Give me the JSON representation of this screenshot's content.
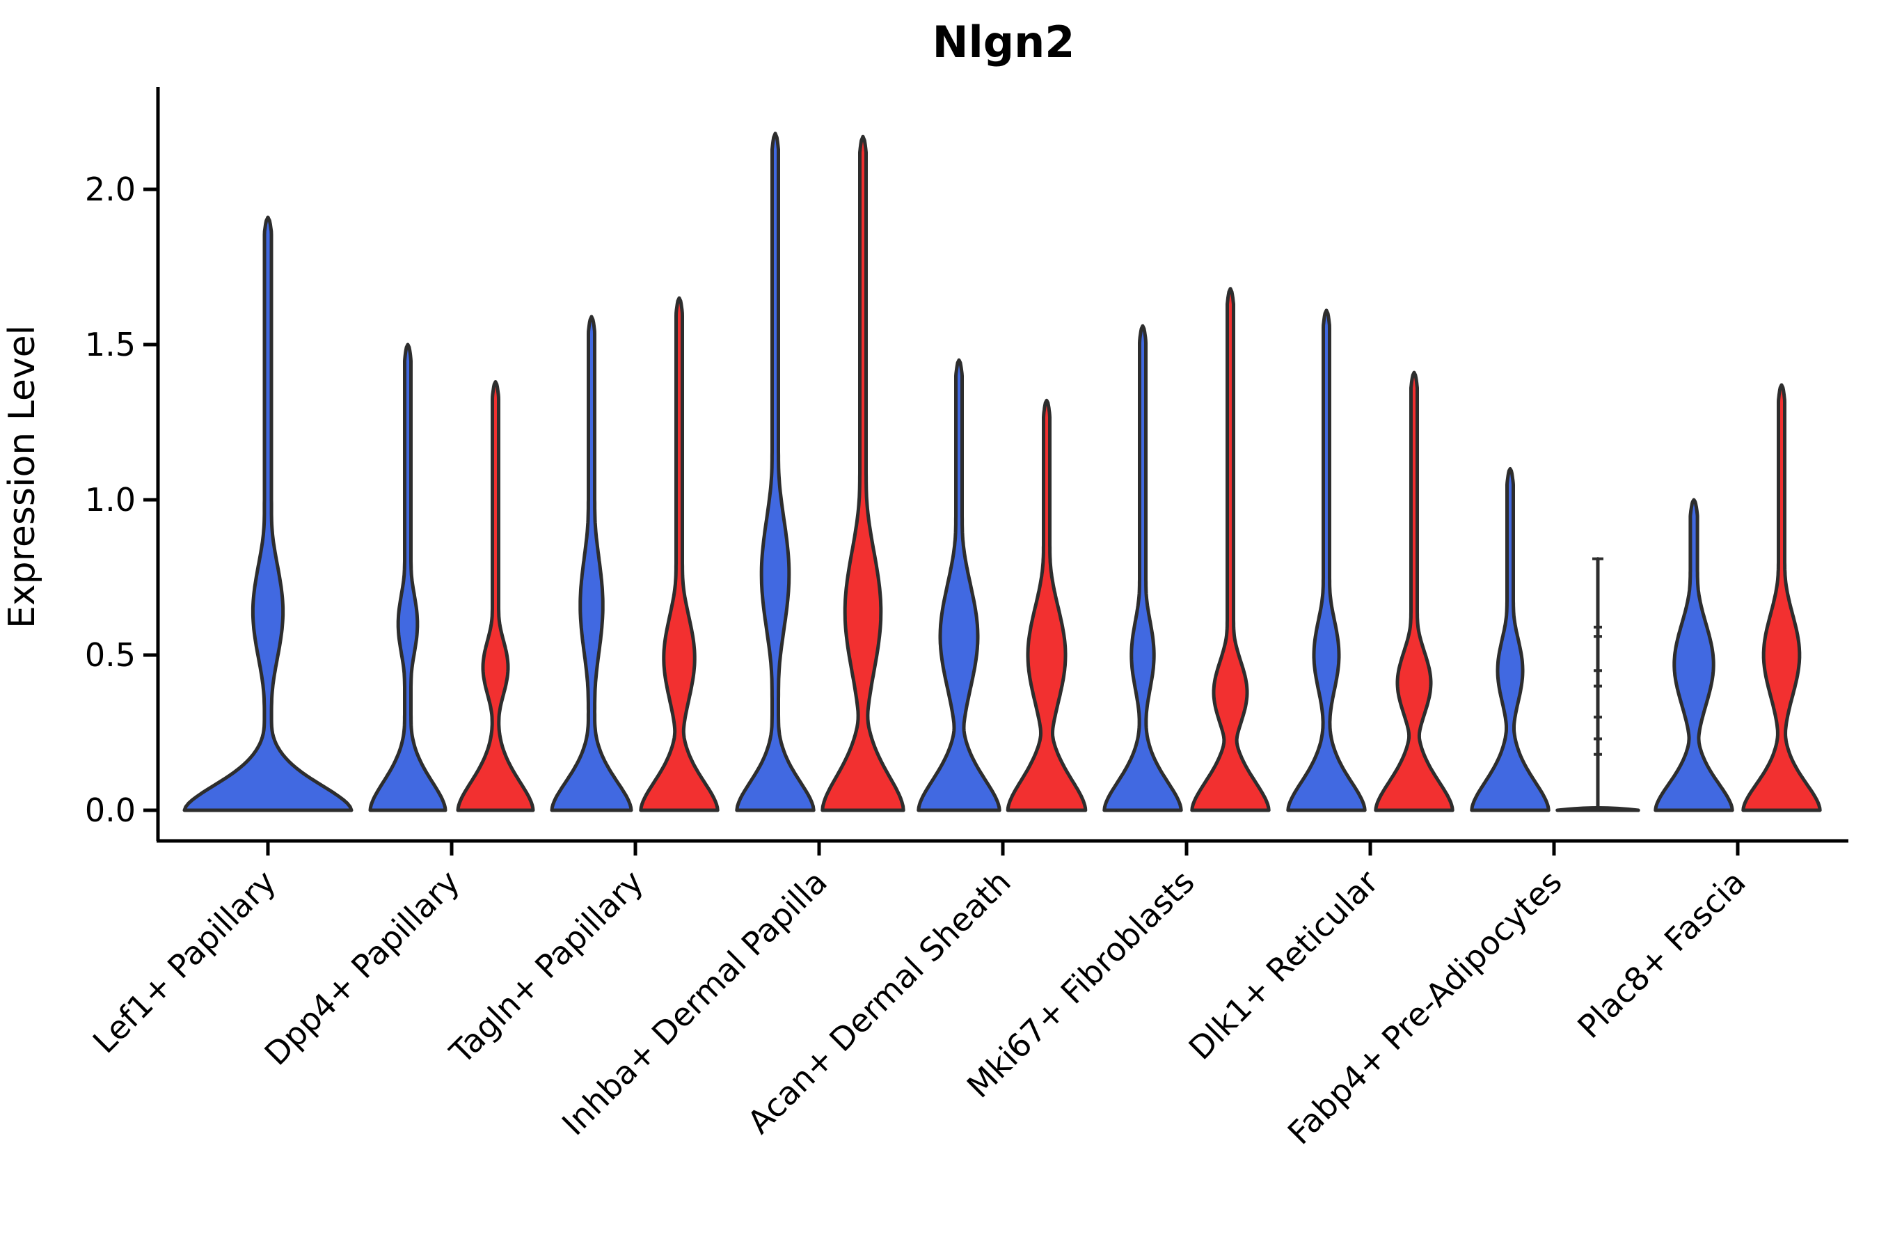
{
  "chart_data": {
    "type": "violin",
    "title": "Nlgn2",
    "ylabel": "Expression Level",
    "xlabel": "",
    "legend": "none",
    "grid": false,
    "y_tick_labels": [
      "0.0",
      "0.5",
      "1.0",
      "1.5",
      "2.0"
    ],
    "y_tick_values": [
      0.0,
      0.5,
      1.0,
      1.5,
      2.0
    ],
    "ylim": [
      -0.1,
      2.33
    ],
    "categories": [
      "Lef1+ Papillary",
      "Dpp4+ Papillary",
      "Tagln+ Papillary",
      "Inhba+ Dermal Papilla",
      "Acan+ Dermal Sheath",
      "Mki67+ Fibroblasts",
      "Dlk1+ Reticular",
      "Fabp4+ Pre-Adipocytes",
      "Plac8+ Fascia"
    ],
    "palette": {
      "blue": "#4169E1",
      "red": "#F23030",
      "outline": "#2D2D2D",
      "axis": "#000000",
      "background": "#FFFFFF"
    },
    "violins": [
      {
        "category_index": 0,
        "group": "blue",
        "side": 0,
        "max": 1.91,
        "bulge": {
          "center": 0.64,
          "lo": 0.35,
          "hi": 1.05,
          "w": 0.18
        },
        "base_w": 1.0,
        "base_falloff": 0.13,
        "spike_w": 0.042,
        "collapsed": false
      },
      {
        "category_index": 1,
        "group": "blue",
        "side": -1,
        "max": 1.5,
        "bulge": {
          "center": 0.6,
          "lo": 0.35,
          "hi": 0.82,
          "w": 0.23
        },
        "base_w": 0.9,
        "base_falloff": 0.15,
        "spike_w": 0.075,
        "collapsed": false
      },
      {
        "category_index": 1,
        "group": "red",
        "side": 1,
        "max": 1.38,
        "bulge": {
          "center": 0.46,
          "lo": 0.25,
          "hi": 0.66,
          "w": 0.3
        },
        "base_w": 0.9,
        "base_falloff": 0.15,
        "spike_w": 0.075,
        "collapsed": false
      },
      {
        "category_index": 2,
        "group": "blue",
        "side": -1,
        "max": 1.59,
        "bulge": {
          "center": 0.66,
          "lo": 0.34,
          "hi": 1.08,
          "w": 0.27
        },
        "base_w": 0.95,
        "base_falloff": 0.15,
        "spike_w": 0.075,
        "collapsed": false
      },
      {
        "category_index": 2,
        "group": "red",
        "side": 1,
        "max": 1.65,
        "bulge": {
          "center": 0.49,
          "lo": 0.23,
          "hi": 0.85,
          "w": 0.37
        },
        "base_w": 0.92,
        "base_falloff": 0.15,
        "spike_w": 0.075,
        "collapsed": false
      },
      {
        "category_index": 3,
        "group": "blue",
        "side": -1,
        "max": 2.18,
        "bulge": {
          "center": 0.76,
          "lo": 0.34,
          "hi": 1.17,
          "w": 0.33
        },
        "base_w": 0.92,
        "base_falloff": 0.15,
        "spike_w": 0.075,
        "collapsed": false
      },
      {
        "category_index": 3,
        "group": "red",
        "side": 1,
        "max": 2.17,
        "bulge": {
          "center": 0.64,
          "lo": 0.22,
          "hi": 1.1,
          "w": 0.43
        },
        "base_w": 0.97,
        "base_falloff": 0.18,
        "spike_w": 0.075,
        "collapsed": false
      },
      {
        "category_index": 4,
        "group": "blue",
        "side": -1,
        "max": 1.45,
        "bulge": {
          "center": 0.56,
          "lo": 0.21,
          "hi": 0.97,
          "w": 0.45
        },
        "base_w": 0.97,
        "base_falloff": 0.16,
        "spike_w": 0.075,
        "collapsed": false
      },
      {
        "category_index": 4,
        "group": "red",
        "side": 1,
        "max": 1.32,
        "bulge": {
          "center": 0.5,
          "lo": 0.2,
          "hi": 0.9,
          "w": 0.45
        },
        "base_w": 0.93,
        "base_falloff": 0.16,
        "spike_w": 0.075,
        "collapsed": false
      },
      {
        "category_index": 5,
        "group": "blue",
        "side": -1,
        "max": 1.56,
        "bulge": {
          "center": 0.5,
          "lo": 0.27,
          "hi": 0.8,
          "w": 0.27
        },
        "base_w": 0.92,
        "base_falloff": 0.15,
        "spike_w": 0.075,
        "collapsed": false
      },
      {
        "category_index": 5,
        "group": "red",
        "side": 1,
        "max": 1.68,
        "bulge": {
          "center": 0.38,
          "lo": 0.2,
          "hi": 0.66,
          "w": 0.4
        },
        "base_w": 0.92,
        "base_falloff": 0.15,
        "spike_w": 0.075,
        "collapsed": false
      },
      {
        "category_index": 6,
        "group": "blue",
        "side": -1,
        "max": 1.61,
        "bulge": {
          "center": 0.5,
          "lo": 0.27,
          "hi": 0.8,
          "w": 0.3
        },
        "base_w": 0.92,
        "base_falloff": 0.15,
        "spike_w": 0.075,
        "collapsed": false
      },
      {
        "category_index": 6,
        "group": "red",
        "side": 1,
        "max": 1.41,
        "bulge": {
          "center": 0.41,
          "lo": 0.2,
          "hi": 0.66,
          "w": 0.4
        },
        "base_w": 0.92,
        "base_falloff": 0.15,
        "spike_w": 0.075,
        "collapsed": false
      },
      {
        "category_index": 7,
        "group": "blue",
        "side": -1,
        "max": 1.1,
        "bulge": {
          "center": 0.45,
          "lo": 0.22,
          "hi": 0.7,
          "w": 0.3
        },
        "base_w": 0.92,
        "base_falloff": 0.15,
        "spike_w": 0.075,
        "collapsed": false
      },
      {
        "category_index": 7,
        "group": "red",
        "side": 1,
        "max": 0.81,
        "bulge": {
          "center": 0.4,
          "lo": 0.2,
          "hi": 0.6,
          "w": 0.0
        },
        "base_w": 0.97,
        "base_falloff": 0.1,
        "spike_w": 0.0,
        "collapsed": true,
        "nubs": [
          0.18,
          0.23,
          0.3,
          0.4,
          0.45,
          0.56,
          0.59
        ]
      },
      {
        "category_index": 8,
        "group": "blue",
        "side": -1,
        "max": 1.0,
        "bulge": {
          "center": 0.47,
          "lo": 0.2,
          "hi": 0.8,
          "w": 0.47
        },
        "base_w": 0.92,
        "base_falloff": 0.14,
        "spike_w": 0.085,
        "collapsed": false
      },
      {
        "category_index": 8,
        "group": "red",
        "side": 1,
        "max": 1.37,
        "bulge": {
          "center": 0.5,
          "lo": 0.2,
          "hi": 0.8,
          "w": 0.43
        },
        "base_w": 0.92,
        "base_falloff": 0.14,
        "spike_w": 0.075,
        "collapsed": false
      }
    ]
  }
}
